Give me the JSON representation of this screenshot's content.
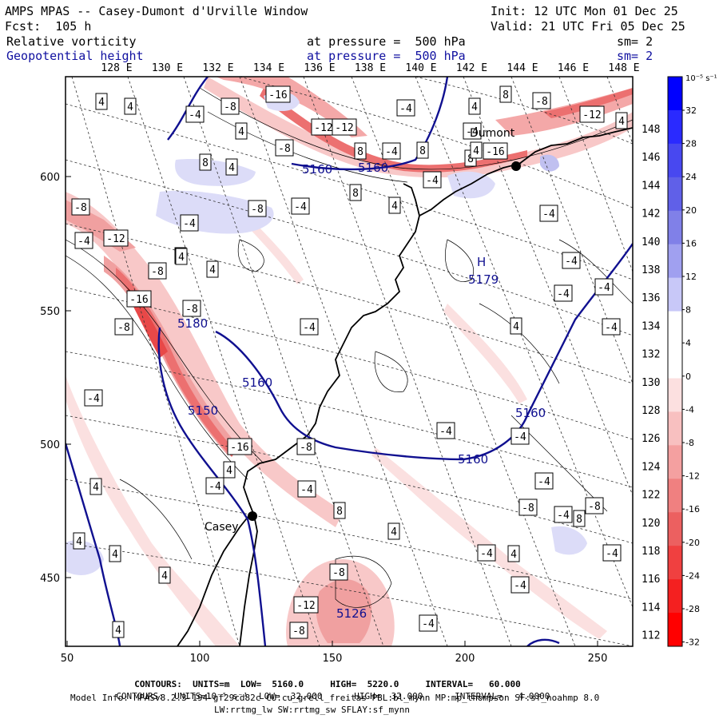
{
  "header": {
    "title": "AMPS MPAS -- Casey-Dumont d'Urville Window",
    "init": "Init: 12 UTC Mon 01 Dec 25",
    "fcst": "Fcst:  105 h",
    "valid": "Valid: 21 UTC Fri 05 Dec 25",
    "field1_name": "Relative vorticity",
    "field1_level": "at pressure =  500 hPa",
    "field1_sm": "sm= 2",
    "field2_name": "Geopotential height",
    "field2_level": "at pressure =  500 hPa",
    "field2_sm": "sm= 2"
  },
  "axes": {
    "top_lon_labels": [
      "128 E",
      "130 E",
      "132 E",
      "134 E",
      "136 E",
      "138 E",
      "140 E",
      "142 E",
      "144 E",
      "146 E",
      "148 E"
    ],
    "right_lon_labels": [
      "148 E",
      "146 E",
      "144 E",
      "142 E",
      "140 E",
      "138 E",
      "136 E",
      "134 E",
      "132 E",
      "130 E",
      "128 E",
      "126 E",
      "124 E",
      "122 E",
      "120 E",
      "118 E",
      "116 E",
      "114 E",
      "112 E"
    ],
    "x_ticks": [
      "50",
      "100",
      "150",
      "200",
      "250"
    ],
    "y_ticks": [
      "600",
      "550",
      "500",
      "450"
    ]
  },
  "colorbar": {
    "unit_label": "10⁻⁵ s⁻¹",
    "labels": [
      "32",
      "28",
      "24",
      "20",
      "16",
      "12",
      "8",
      "4",
      "0",
      "-4",
      "-8",
      "-12",
      "-16",
      "-20",
      "-24",
      "-28",
      "-32"
    ],
    "colors": [
      "#0000ff",
      "#2a2aff",
      "#4848f0",
      "#6060e8",
      "#8080e8",
      "#a0a0f0",
      "#c8c8f8",
      "#ffffff",
      "#ffffff",
      "#fce0e0",
      "#f8c0c0",
      "#f4a0a0",
      "#f08080",
      "#ec6060",
      "#f04040",
      "#f42020",
      "#ff0000"
    ]
  },
  "map_labels": {
    "heights": [
      "5160",
      "5160",
      "5180",
      "5160",
      "5150",
      "5160",
      "5160",
      "5179",
      "5126"
    ],
    "vorticity_boxes": [
      "4",
      "4",
      "-8",
      "-16",
      "8",
      "-4",
      "-8",
      "4",
      "-4",
      "4",
      "-12",
      "-4",
      "-8",
      "-12",
      "8",
      "-12",
      "4",
      "8",
      "4",
      "8",
      "8",
      "-4",
      "4",
      "-4",
      "4",
      "8",
      "-16",
      "-8",
      "-12",
      "-8",
      "-16",
      "-8",
      "-4",
      "-4",
      "-16",
      "4",
      "-8",
      "-4",
      "4",
      "4",
      "4",
      "-4",
      "-8",
      "-4",
      "-4",
      "4",
      "-4",
      "8",
      "4",
      "-8",
      "-4",
      "-4",
      "-4",
      "-8",
      "-12",
      "-8",
      "-4",
      "-4",
      "-8",
      "-4",
      "-4",
      "4",
      "8",
      "4",
      "4",
      "4",
      "4",
      "4",
      "-4",
      "-4",
      "-4",
      "-4",
      "-4",
      "-4",
      "-8"
    ],
    "stations": [
      "Casey",
      "Dumont"
    ],
    "low_marker": "H"
  },
  "footer": {
    "line1_prefix": "CONTOURS:  UNITS=m  LOW=  5160.0",
    "line1_high": "HIGH=  5220.0",
    "line1_interval": "INTERVAL=   60.000",
    "line2_prefix": "CONTOURS:  UNITS=10⁻⁵ s⁻¹  LOW= -32.000",
    "line2_high": "HIGH=  32.000",
    "line2_interval": "INTERVAL=   4.0000",
    "model_info": "Model Info: MPASv8.2.3-194-gf29cd82c CU:cu_grell_freitas PBL:bl_mynn MP:mp_thompson SF:sf_noahmp 8.0",
    "model_info2": "LW:rrtmg_lw SW:rrtmg_sw SFLAY:sf_mynn"
  }
}
